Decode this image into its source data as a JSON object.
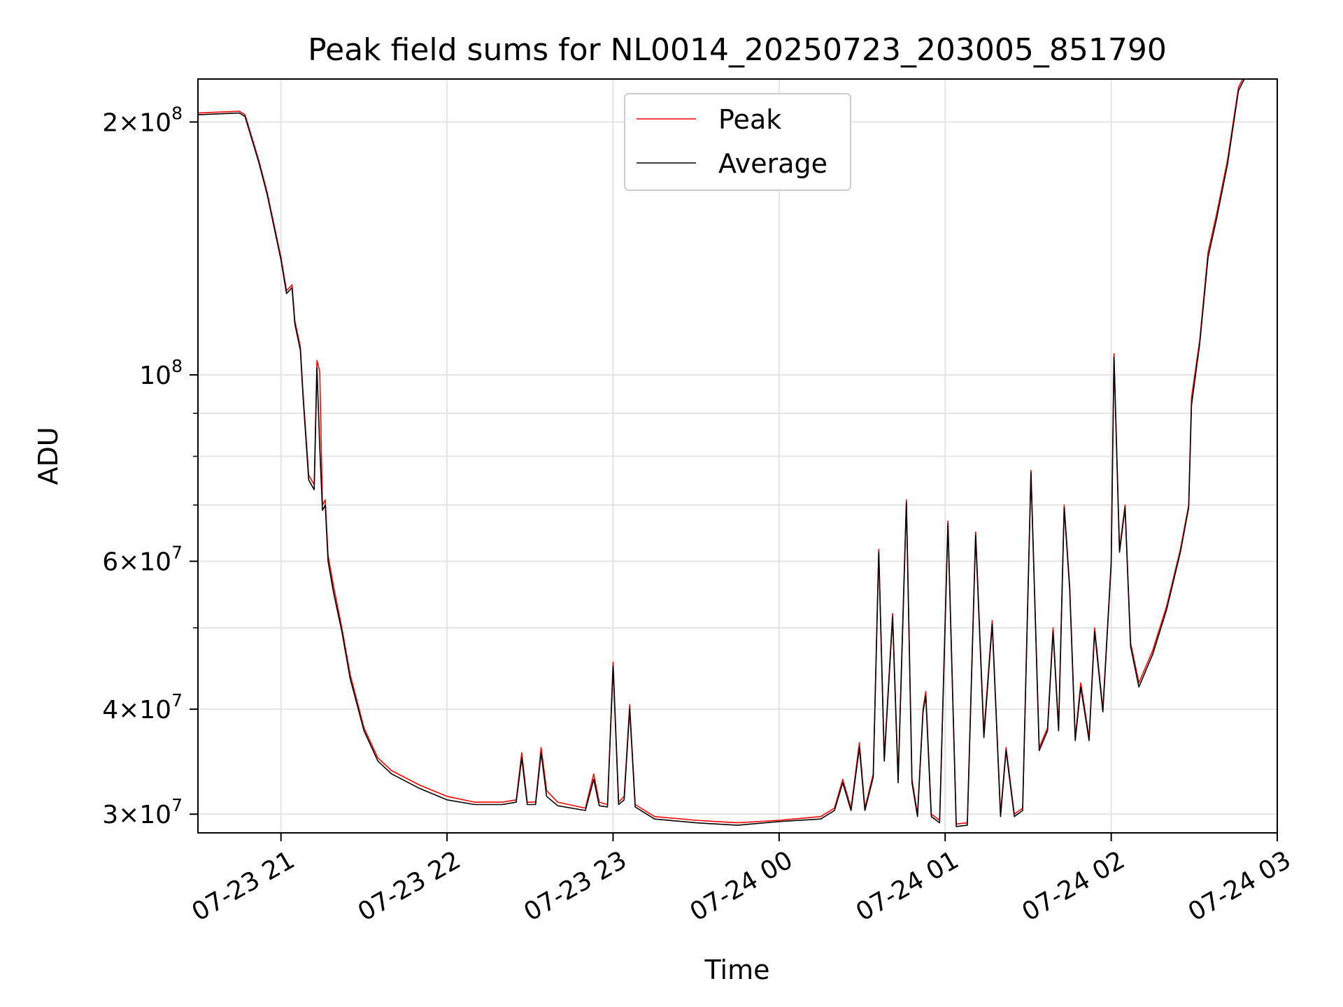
{
  "chart_data": {
    "type": "line",
    "title": "Peak field sums for NL0014_20250723_203005_851790",
    "xlabel": "Time",
    "ylabel": "ADU",
    "y_scale": "log",
    "ylim": [
      28500000,
      225000000
    ],
    "xlim": [
      "2025-07-23 20:30",
      "2025-07-24 03:00"
    ],
    "grid": true,
    "legend_position": "upper center",
    "x_ticks": [
      {
        "t": "2025-07-23 21:00",
        "label": "07-23 21"
      },
      {
        "t": "2025-07-23 22:00",
        "label": "07-23 22"
      },
      {
        "t": "2025-07-23 23:00",
        "label": "07-23 23"
      },
      {
        "t": "2025-07-24 00:00",
        "label": "07-24 00"
      },
      {
        "t": "2025-07-24 01:00",
        "label": "07-24 01"
      },
      {
        "t": "2025-07-24 02:00",
        "label": "07-24 02"
      },
      {
        "t": "2025-07-24 03:00",
        "label": "07-24 03"
      }
    ],
    "y_ticks": [
      {
        "value": 30000000,
        "mant": "3",
        "exp": "7",
        "kind": "sci"
      },
      {
        "value": 40000000,
        "mant": "4",
        "exp": "7",
        "kind": "sci"
      },
      {
        "value": 60000000,
        "mant": "6",
        "exp": "7",
        "kind": "sci"
      },
      {
        "value": 100000000,
        "mant": "",
        "exp": "8",
        "kind": "pow"
      },
      {
        "value": 200000000,
        "mant": "2",
        "exp": "8",
        "kind": "sci"
      }
    ],
    "y_minor_ticks": [
      50000000,
      70000000,
      80000000,
      90000000
    ],
    "series": [
      {
        "name": "Peak",
        "color": "#ff0000",
        "points": [
          [
            "2025-07-23 20:30",
            205000000
          ],
          [
            "2025-07-23 20:45",
            206000000
          ],
          [
            "2025-07-23 20:47",
            204000000
          ],
          [
            "2025-07-23 20:52",
            180000000
          ],
          [
            "2025-07-23 20:55",
            165000000
          ],
          [
            "2025-07-23 21:00",
            138000000
          ],
          [
            "2025-07-23 21:02",
            126000000
          ],
          [
            "2025-07-23 21:04",
            128000000
          ],
          [
            "2025-07-23 21:05",
            116000000
          ],
          [
            "2025-07-23 21:07",
            108000000
          ],
          [
            "2025-07-23 21:08",
            95000000
          ],
          [
            "2025-07-23 21:09",
            85000000
          ],
          [
            "2025-07-23 21:10",
            76000000
          ],
          [
            "2025-07-23 21:12",
            74000000
          ],
          [
            "2025-07-23 21:13",
            104000000
          ],
          [
            "2025-07-23 21:14",
            101000000
          ],
          [
            "2025-07-23 21:15",
            70000000
          ],
          [
            "2025-07-23 21:16",
            71000000
          ],
          [
            "2025-07-23 21:17",
            61000000
          ],
          [
            "2025-07-23 21:19",
            56000000
          ],
          [
            "2025-07-23 21:22",
            50000000
          ],
          [
            "2025-07-23 21:25",
            44000000
          ],
          [
            "2025-07-23 21:30",
            38000000
          ],
          [
            "2025-07-23 21:35",
            35000000
          ],
          [
            "2025-07-23 21:40",
            33800000
          ],
          [
            "2025-07-23 21:50",
            32500000
          ],
          [
            "2025-07-23 22:00",
            31500000
          ],
          [
            "2025-07-23 22:10",
            31000000
          ],
          [
            "2025-07-23 22:20",
            31000000
          ],
          [
            "2025-07-23 22:25",
            31200000
          ],
          [
            "2025-07-23 22:27",
            35500000
          ],
          [
            "2025-07-23 22:29",
            31000000
          ],
          [
            "2025-07-23 22:32",
            31000000
          ],
          [
            "2025-07-23 22:34",
            36000000
          ],
          [
            "2025-07-23 22:36",
            32000000
          ],
          [
            "2025-07-23 22:40",
            31000000
          ],
          [
            "2025-07-23 22:50",
            30500000
          ],
          [
            "2025-07-23 22:53",
            33500000
          ],
          [
            "2025-07-23 22:55",
            31000000
          ],
          [
            "2025-07-23 22:58",
            30800000
          ],
          [
            "2025-07-23 23:00",
            45500000
          ],
          [
            "2025-07-23 23:02",
            31000000
          ],
          [
            "2025-07-23 23:04",
            31500000
          ],
          [
            "2025-07-23 23:06",
            40500000
          ],
          [
            "2025-07-23 23:08",
            30800000
          ],
          [
            "2025-07-23 23:15",
            29800000
          ],
          [
            "2025-07-23 23:30",
            29500000
          ],
          [
            "2025-07-23 23:45",
            29300000
          ],
          [
            "2025-07-24 00:00",
            29500000
          ],
          [
            "2025-07-24 00:15",
            29800000
          ],
          [
            "2025-07-24 00:20",
            30500000
          ],
          [
            "2025-07-24 00:23",
            33000000
          ],
          [
            "2025-07-24 00:26",
            30500000
          ],
          [
            "2025-07-24 00:29",
            36500000
          ],
          [
            "2025-07-24 00:31",
            30500000
          ],
          [
            "2025-07-24 00:34",
            33500000
          ],
          [
            "2025-07-24 00:36",
            62000000
          ],
          [
            "2025-07-24 00:38",
            35000000
          ],
          [
            "2025-07-24 00:41",
            52000000
          ],
          [
            "2025-07-24 00:43",
            33000000
          ],
          [
            "2025-07-24 00:46",
            71000000
          ],
          [
            "2025-07-24 00:48",
            33000000
          ],
          [
            "2025-07-24 00:50",
            30000000
          ],
          [
            "2025-07-24 00:52",
            40000000
          ],
          [
            "2025-07-24 00:53",
            42000000
          ],
          [
            "2025-07-24 00:55",
            30000000
          ],
          [
            "2025-07-24 00:58",
            29500000
          ],
          [
            "2025-07-24 01:01",
            67000000
          ],
          [
            "2025-07-24 01:04",
            29200000
          ],
          [
            "2025-07-24 01:08",
            29300000
          ],
          [
            "2025-07-24 01:11",
            65000000
          ],
          [
            "2025-07-24 01:14",
            37500000
          ],
          [
            "2025-07-24 01:17",
            51000000
          ],
          [
            "2025-07-24 01:20",
            30000000
          ],
          [
            "2025-07-24 01:22",
            36000000
          ],
          [
            "2025-07-24 01:25",
            30000000
          ],
          [
            "2025-07-24 01:28",
            30500000
          ],
          [
            "2025-07-24 01:31",
            77000000
          ],
          [
            "2025-07-24 01:34",
            36000000
          ],
          [
            "2025-07-24 01:37",
            38000000
          ],
          [
            "2025-07-24 01:39",
            50000000
          ],
          [
            "2025-07-24 01:41",
            38000000
          ],
          [
            "2025-07-24 01:43",
            70000000
          ],
          [
            "2025-07-24 01:45",
            56000000
          ],
          [
            "2025-07-24 01:47",
            37000000
          ],
          [
            "2025-07-24 01:49",
            43000000
          ],
          [
            "2025-07-24 01:52",
            37000000
          ],
          [
            "2025-07-24 01:54",
            50000000
          ],
          [
            "2025-07-24 01:57",
            40000000
          ],
          [
            "2025-07-24 02:00",
            60000000
          ],
          [
            "2025-07-24 02:01",
            106000000
          ],
          [
            "2025-07-24 02:03",
            62000000
          ],
          [
            "2025-07-24 02:05",
            70000000
          ],
          [
            "2025-07-24 02:07",
            48000000
          ],
          [
            "2025-07-24 02:10",
            43000000
          ],
          [
            "2025-07-24 02:15",
            47000000
          ],
          [
            "2025-07-24 02:20",
            53000000
          ],
          [
            "2025-07-24 02:25",
            62000000
          ],
          [
            "2025-07-24 02:28",
            70000000
          ],
          [
            "2025-07-24 02:29",
            94000000
          ],
          [
            "2025-07-24 02:32",
            110000000
          ],
          [
            "2025-07-24 02:35",
            140000000
          ],
          [
            "2025-07-24 02:38",
            155000000
          ],
          [
            "2025-07-24 02:42",
            180000000
          ],
          [
            "2025-07-24 02:46",
            220000000
          ],
          [
            "2025-07-24 02:49",
            230000000
          ]
        ]
      },
      {
        "name": "Average",
        "color": "#000000",
        "points": [
          [
            "2025-07-23 20:30",
            204000000
          ],
          [
            "2025-07-23 20:45",
            205000000
          ],
          [
            "2025-07-23 20:47",
            203000000
          ],
          [
            "2025-07-23 20:52",
            179000000
          ],
          [
            "2025-07-23 20:55",
            164000000
          ],
          [
            "2025-07-23 21:00",
            137000000
          ],
          [
            "2025-07-23 21:02",
            125000000
          ],
          [
            "2025-07-23 21:04",
            127000000
          ],
          [
            "2025-07-23 21:05",
            115000000
          ],
          [
            "2025-07-23 21:07",
            107000000
          ],
          [
            "2025-07-23 21:08",
            94000000
          ],
          [
            "2025-07-23 21:09",
            84000000
          ],
          [
            "2025-07-23 21:10",
            75000000
          ],
          [
            "2025-07-23 21:12",
            73000000
          ],
          [
            "2025-07-23 21:13",
            102000000
          ],
          [
            "2025-07-23 21:14",
            82000000
          ],
          [
            "2025-07-23 21:15",
            69000000
          ],
          [
            "2025-07-23 21:16",
            70000000
          ],
          [
            "2025-07-23 21:17",
            60000000
          ],
          [
            "2025-07-23 21:19",
            55000000
          ],
          [
            "2025-07-23 21:22",
            49500000
          ],
          [
            "2025-07-23 21:25",
            43500000
          ],
          [
            "2025-07-23 21:30",
            37700000
          ],
          [
            "2025-07-23 21:35",
            34700000
          ],
          [
            "2025-07-23 21:40",
            33500000
          ],
          [
            "2025-07-23 21:50",
            32200000
          ],
          [
            "2025-07-23 22:00",
            31200000
          ],
          [
            "2025-07-23 22:10",
            30800000
          ],
          [
            "2025-07-23 22:20",
            30800000
          ],
          [
            "2025-07-23 22:25",
            31000000
          ],
          [
            "2025-07-23 22:27",
            35000000
          ],
          [
            "2025-07-23 22:29",
            30800000
          ],
          [
            "2025-07-23 22:32",
            30800000
          ],
          [
            "2025-07-23 22:34",
            35500000
          ],
          [
            "2025-07-23 22:36",
            31500000
          ],
          [
            "2025-07-23 22:40",
            30700000
          ],
          [
            "2025-07-23 22:50",
            30300000
          ],
          [
            "2025-07-23 22:53",
            33000000
          ],
          [
            "2025-07-23 22:55",
            30700000
          ],
          [
            "2025-07-23 22:58",
            30600000
          ],
          [
            "2025-07-23 23:00",
            45000000
          ],
          [
            "2025-07-23 23:02",
            30800000
          ],
          [
            "2025-07-23 23:04",
            31200000
          ],
          [
            "2025-07-23 23:06",
            40000000
          ],
          [
            "2025-07-23 23:08",
            30600000
          ],
          [
            "2025-07-23 23:15",
            29600000
          ],
          [
            "2025-07-23 23:30",
            29300000
          ],
          [
            "2025-07-23 23:45",
            29100000
          ],
          [
            "2025-07-24 00:00",
            29400000
          ],
          [
            "2025-07-24 00:15",
            29600000
          ],
          [
            "2025-07-24 00:20",
            30300000
          ],
          [
            "2025-07-24 00:23",
            32700000
          ],
          [
            "2025-07-24 00:26",
            30300000
          ],
          [
            "2025-07-24 00:29",
            36000000
          ],
          [
            "2025-07-24 00:31",
            30300000
          ],
          [
            "2025-07-24 00:34",
            33200000
          ],
          [
            "2025-07-24 00:36",
            61500000
          ],
          [
            "2025-07-24 00:38",
            34700000
          ],
          [
            "2025-07-24 00:41",
            51500000
          ],
          [
            "2025-07-24 00:43",
            32700000
          ],
          [
            "2025-07-24 00:46",
            70500000
          ],
          [
            "2025-07-24 00:48",
            32700000
          ],
          [
            "2025-07-24 00:50",
            29800000
          ],
          [
            "2025-07-24 00:52",
            39700000
          ],
          [
            "2025-07-24 00:53",
            41500000
          ],
          [
            "2025-07-24 00:55",
            29800000
          ],
          [
            "2025-07-24 00:58",
            29300000
          ],
          [
            "2025-07-24 01:01",
            66500000
          ],
          [
            "2025-07-24 01:04",
            29000000
          ],
          [
            "2025-07-24 01:08",
            29100000
          ],
          [
            "2025-07-24 01:11",
            64500000
          ],
          [
            "2025-07-24 01:14",
            37000000
          ],
          [
            "2025-07-24 01:17",
            50500000
          ],
          [
            "2025-07-24 01:20",
            29800000
          ],
          [
            "2025-07-24 01:22",
            35700000
          ],
          [
            "2025-07-24 01:25",
            29800000
          ],
          [
            "2025-07-24 01:28",
            30300000
          ],
          [
            "2025-07-24 01:31",
            76500000
          ],
          [
            "2025-07-24 01:34",
            35700000
          ],
          [
            "2025-07-24 01:37",
            37700000
          ],
          [
            "2025-07-24 01:39",
            49500000
          ],
          [
            "2025-07-24 01:41",
            37700000
          ],
          [
            "2025-07-24 01:43",
            69500000
          ],
          [
            "2025-07-24 01:45",
            55500000
          ],
          [
            "2025-07-24 01:47",
            36700000
          ],
          [
            "2025-07-24 01:49",
            42500000
          ],
          [
            "2025-07-24 01:52",
            36700000
          ],
          [
            "2025-07-24 01:54",
            49500000
          ],
          [
            "2025-07-24 01:57",
            39700000
          ],
          [
            "2025-07-24 02:00",
            59500000
          ],
          [
            "2025-07-24 02:01",
            105000000
          ],
          [
            "2025-07-24 02:03",
            61500000
          ],
          [
            "2025-07-24 02:05",
            69500000
          ],
          [
            "2025-07-24 02:07",
            47500000
          ],
          [
            "2025-07-24 02:10",
            42500000
          ],
          [
            "2025-07-24 02:15",
            46500000
          ],
          [
            "2025-07-24 02:20",
            52500000
          ],
          [
            "2025-07-24 02:25",
            61500000
          ],
          [
            "2025-07-24 02:28",
            69500000
          ],
          [
            "2025-07-24 02:29",
            92000000
          ],
          [
            "2025-07-24 02:32",
            109000000
          ],
          [
            "2025-07-24 02:35",
            138000000
          ],
          [
            "2025-07-24 02:38",
            153000000
          ],
          [
            "2025-07-24 02:42",
            178000000
          ],
          [
            "2025-07-24 02:46",
            218000000
          ],
          [
            "2025-07-24 02:49",
            228000000
          ]
        ]
      }
    ]
  }
}
